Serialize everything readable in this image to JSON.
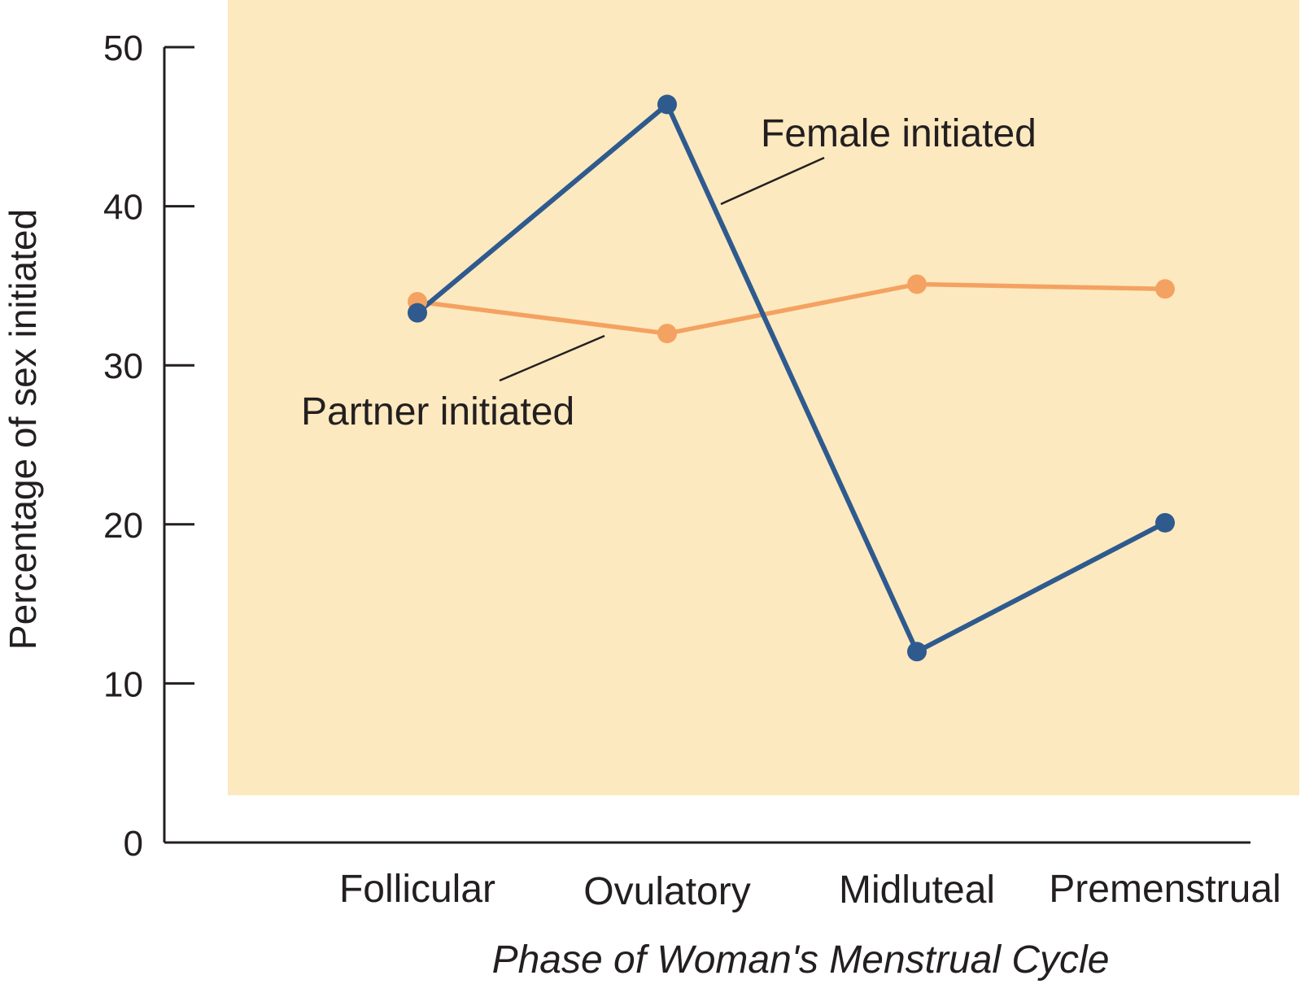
{
  "chart_data": {
    "type": "line",
    "title": "",
    "xlabel": "Phase of Woman's Menstrual Cycle",
    "ylabel": "Percentage of sex initiated",
    "categories": [
      "Follicular",
      "Ovulatory",
      "Midluteal",
      "Premenstrual"
    ],
    "ylim": [
      0,
      50
    ],
    "yticks": [
      0,
      10,
      20,
      30,
      40,
      50
    ],
    "grid": false,
    "legend": "inline labels",
    "series": [
      {
        "name": "Female initiated",
        "color": "#2e5a8e",
        "values": [
          33.3,
          46.4,
          12.0,
          20.1
        ]
      },
      {
        "name": "Partner initiated",
        "color": "#f4a261",
        "values": [
          34.0,
          32.0,
          35.1,
          34.8
        ]
      }
    ],
    "background_color": "#fde9bf"
  }
}
